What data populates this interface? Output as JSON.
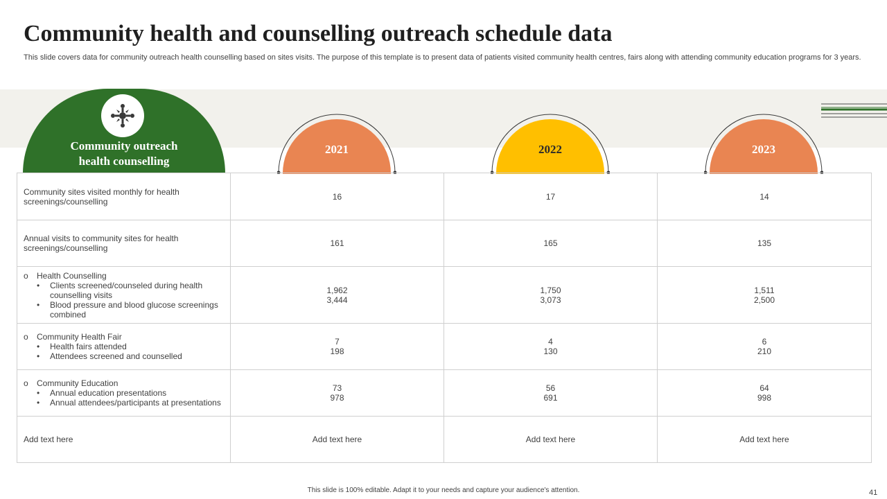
{
  "slide": {
    "title": "Community health and counselling outreach schedule data",
    "subtitle": "This slide covers data for  community outreach health counselling based on sites visits. The purpose of this template is to present data of patients visited community health centres, fairs along with attending community education programs for 3 years.",
    "header_label_line1": "Community outreach",
    "header_label_line2": "health counselling",
    "icon": "community-outreach-icon",
    "footer": "This slide is 100% editable.  Adapt it to your needs and capture your audience's attention.",
    "page_number": "41"
  },
  "colors": {
    "green": "#2f7129",
    "orange": "#e98552",
    "yellow": "#ffbf00",
    "band": "#f2f1ec"
  },
  "years": [
    {
      "label": "2021",
      "color": "#e98552",
      "text_color": "#ffffff"
    },
    {
      "label": "2022",
      "color": "#ffbf00",
      "text_color": "#2b2b2b"
    },
    {
      "label": "2023",
      "color": "#e98552",
      "text_color": "#ffffff"
    }
  ],
  "rows": [
    {
      "label": "Community sites visited monthly for health screenings/counselling",
      "values": [
        "16",
        "17",
        "14"
      ]
    },
    {
      "label": "Annual visits to community sites for health screenings/counselling",
      "values": [
        "161",
        "165",
        "135"
      ]
    },
    {
      "label": "Health Counselling",
      "bullets": [
        "Clients screened/counseled during health counselling visits",
        "Blood pressure and blood glucose screenings combined"
      ],
      "values": [
        [
          "1,962",
          "3,444"
        ],
        [
          "1,750",
          "3,073"
        ],
        [
          "1,511",
          "2,500"
        ]
      ]
    },
    {
      "label": "Community Health Fair",
      "bullets": [
        "Health fairs attended",
        "Attendees screened and counselled"
      ],
      "values": [
        [
          "7",
          "198"
        ],
        [
          "4",
          "130"
        ],
        [
          "6",
          "210"
        ]
      ]
    },
    {
      "label": "Community Education",
      "bullets": [
        "Annual education presentations",
        "Annual attendees/participants at presentations"
      ],
      "values": [
        [
          "73",
          "978"
        ],
        [
          "56",
          "691"
        ],
        [
          "64",
          "998"
        ]
      ]
    },
    {
      "label": "Add text here",
      "values": [
        "Add text here",
        "Add text here",
        "Add text here"
      ]
    }
  ],
  "markers": {
    "circle": "o",
    "bullet": "•"
  }
}
